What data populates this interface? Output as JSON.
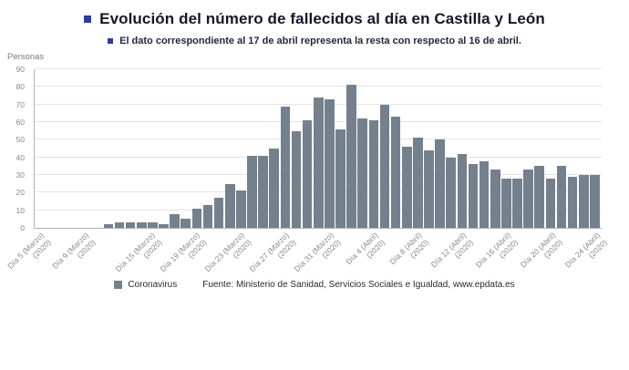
{
  "header": {
    "title": "Evolución del número de fallecidos al día en Castilla y León",
    "subtitle": "El dato correspondiente al 17 de abril representa la resta con respecto al 16 de abril."
  },
  "legend": {
    "label": "Coronavirus"
  },
  "footer": {
    "source": "Fuente: Ministerio de Sanidad, Servicios Sociales e Igualdad, www.epdata.es"
  },
  "colors": {
    "bar": "#75808d",
    "bullet": "#2e3b9e",
    "grid": "#e4e4e4",
    "axis": "#b3b3b3",
    "tick_text": "#8a8a8a"
  },
  "chart_data": {
    "type": "bar",
    "title": "Evolución del número de fallecidos al día en Castilla y León",
    "subtitle": "El dato correspondiente al 17 de abril representa la resta con respecto al 16 de abril.",
    "series_name": "Coronavirus",
    "xlabel": "",
    "ylabel": "Personas",
    "ylim": [
      0,
      90
    ],
    "yticks": [
      0,
      10,
      20,
      30,
      40,
      50,
      60,
      70,
      80,
      90
    ],
    "grid": true,
    "legend_position": "bottom",
    "n_points": 51,
    "year_label": "(2020)",
    "x_ticks": [
      {
        "index": 0,
        "label": "Día 5 (Marzo)"
      },
      {
        "index": 4,
        "label": "Día 9 (Marzo)"
      },
      {
        "index": 10,
        "label": "Día 15 (Marzo)"
      },
      {
        "index": 14,
        "label": "Día 19 (Marzo)"
      },
      {
        "index": 18,
        "label": "Día 23 (Marzo)"
      },
      {
        "index": 22,
        "label": "Día 27 (Marzo)"
      },
      {
        "index": 26,
        "label": "Día 31 (Marzo)"
      },
      {
        "index": 30,
        "label": "Día 4 (Abril)"
      },
      {
        "index": 34,
        "label": "Día 8 (Abril)"
      },
      {
        "index": 38,
        "label": "Día 12 (Abril)"
      },
      {
        "index": 42,
        "label": "Día 16 (Abril)"
      },
      {
        "index": 46,
        "label": "Día 20 (Abril)"
      },
      {
        "index": 50,
        "label": "Día 24 (Abril)"
      }
    ],
    "values": [
      0,
      0,
      0,
      0,
      0,
      0,
      2,
      3,
      3,
      3,
      3,
      2,
      8,
      5,
      11,
      13,
      17,
      25,
      21,
      41,
      41,
      45,
      69,
      55,
      61,
      74,
      73,
      56,
      81,
      62,
      61,
      70,
      63,
      46,
      51,
      44,
      50,
      40,
      42,
      36,
      38,
      33,
      28,
      28,
      33,
      35,
      28,
      35,
      29,
      30,
      30
    ]
  }
}
